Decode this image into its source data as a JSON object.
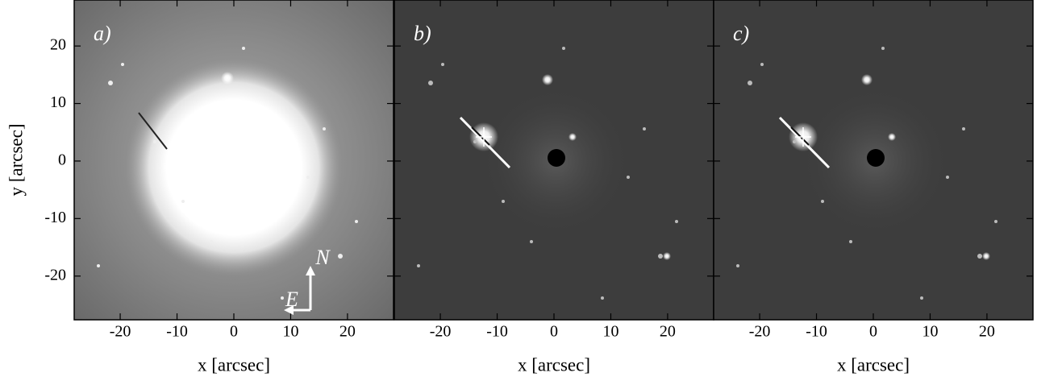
{
  "chart_data": [
    {
      "type": "image",
      "panel_label": "a)",
      "xlabel": "x [arcsec]",
      "ylabel": "y [arcsec]",
      "annotations": [
        "N",
        "E"
      ],
      "xlim": [
        -28.1,
        28.1
      ],
      "ylim": [
        -27.6,
        28.0
      ],
      "xticks": [
        -20,
        -10,
        0,
        10,
        20
      ],
      "yticks": [
        -20,
        -10,
        0,
        10,
        20
      ]
    },
    {
      "type": "image",
      "panel_label": "b)",
      "xlabel": "x [arcsec]",
      "xlim": [
        -28.1,
        28.1
      ],
      "ylim": [
        -27.6,
        28.0
      ],
      "xticks": [
        -20,
        -10,
        0,
        10,
        20
      ],
      "yticks": [
        -20,
        -10,
        0,
        10,
        20
      ]
    },
    {
      "type": "image",
      "panel_label": "c)",
      "xlabel": "x [arcsec]",
      "xlim": [
        -28.1,
        28.1
      ],
      "ylim": [
        -27.6,
        28.0
      ],
      "xticks": [
        -20,
        -10,
        0,
        10,
        20
      ],
      "yticks": [
        -20,
        -10,
        0,
        10,
        20
      ]
    }
  ]
}
